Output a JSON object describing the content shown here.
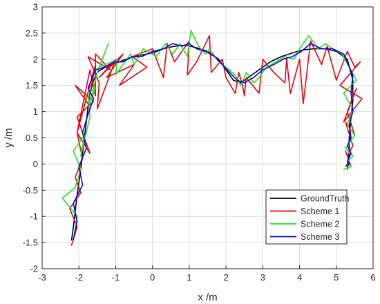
{
  "chart_data": {
    "type": "line",
    "title": "",
    "xlabel": "x /m",
    "ylabel": "y /m",
    "xlim": [
      -3,
      6
    ],
    "ylim": [
      -2,
      3
    ],
    "xticks": [
      -3,
      -2,
      -1,
      0,
      1,
      2,
      3,
      4,
      5,
      6
    ],
    "yticks": [
      -2,
      -1.5,
      -1,
      -0.5,
      0,
      0.5,
      1,
      1.5,
      2,
      2.5,
      3
    ],
    "grid": true,
    "legend_position": "bottom-right",
    "series": [
      {
        "name": "GroundTruth",
        "color": "#000000",
        "x": [
          -2.2,
          -2.15,
          -2.1,
          -2.05,
          -2.0,
          -1.95,
          -1.9,
          -1.85,
          -1.8,
          -1.75,
          -1.7,
          -1.6,
          -1.5,
          -1.45,
          -1.35,
          -1.2,
          -1.0,
          -0.8,
          -0.6,
          -0.3,
          0.0,
          0.3,
          0.6,
          0.9,
          1.2,
          1.5,
          1.8,
          2.0,
          2.2,
          2.4,
          2.6,
          2.9,
          3.2,
          3.5,
          3.8,
          4.1,
          4.4,
          4.7,
          5.0,
          5.3,
          5.45,
          5.45,
          5.4,
          5.35,
          5.35,
          5.3,
          5.3
        ],
        "y": [
          -1.45,
          -1.2,
          -0.9,
          -0.6,
          -0.35,
          -0.1,
          0.2,
          0.5,
          0.8,
          1.1,
          1.35,
          1.6,
          1.75,
          1.78,
          1.82,
          1.88,
          1.92,
          1.98,
          2.03,
          2.08,
          2.12,
          2.2,
          2.25,
          2.27,
          2.22,
          2.15,
          2.0,
          1.8,
          1.6,
          1.55,
          1.65,
          1.8,
          1.95,
          2.05,
          2.12,
          2.18,
          2.2,
          2.2,
          2.15,
          2.0,
          1.6,
          1.2,
          0.9,
          0.5,
          0.2,
          0.0,
          -0.1
        ]
      },
      {
        "name": "Scheme 1",
        "color": "#e8000b",
        "x": [
          -2.2,
          -2.05,
          -2.25,
          -1.95,
          -2.1,
          -1.9,
          -2.05,
          -1.7,
          -2.05,
          -1.6,
          -2.1,
          -1.75,
          -1.55,
          -2.05,
          -1.7,
          -1.55,
          -1.55,
          -1.15,
          -1.75,
          -1.45,
          -1.5,
          -1.0,
          -1.45,
          -0.8,
          -1.25,
          -0.5,
          -0.9,
          -0.15,
          -0.55,
          0.0,
          0.3,
          0.4,
          0.6,
          0.75,
          1.0,
          0.95,
          1.2,
          1.55,
          1.6,
          1.9,
          2.0,
          2.25,
          2.35,
          2.45,
          2.5,
          2.55,
          2.9,
          3.0,
          3.3,
          3.6,
          3.65,
          3.75,
          4.0,
          4.1,
          4.3,
          4.6,
          4.75,
          5.0,
          5.3,
          5.5,
          5.65,
          5.1,
          5.7,
          5.2,
          5.55,
          5.3,
          5.5,
          5.25,
          5.45,
          5.3,
          5.4,
          5.25,
          5.35,
          5.25
        ],
        "y": [
          -1.55,
          -1.2,
          -0.85,
          -0.55,
          -0.25,
          0.1,
          0.6,
          0.2,
          0.9,
          1.2,
          1.5,
          1.15,
          1.9,
          0.6,
          1.8,
          1.3,
          2.1,
          1.8,
          2.05,
          1.55,
          1.05,
          2.0,
          1.65,
          2.1,
          1.65,
          1.9,
          1.5,
          1.85,
          2.05,
          2.2,
          1.65,
          2.3,
          1.95,
          2.1,
          2.35,
          1.7,
          1.95,
          2.45,
          1.75,
          2.0,
          1.65,
          1.35,
          1.75,
          1.5,
          1.3,
          1.65,
          1.35,
          2.0,
          1.75,
          1.55,
          2.0,
          1.35,
          2.0,
          1.15,
          2.35,
          1.9,
          2.25,
          1.6,
          2.15,
          1.85,
          1.95,
          1.5,
          1.25,
          0.8,
          1.45,
          1.0,
          0.55,
          0.8,
          0.35,
          0.15,
          -0.05,
          0.25,
          0.05,
          -0.05
        ]
      },
      {
        "name": "Scheme 2",
        "color": "#1ce81c",
        "x": [
          -2.15,
          -2.05,
          -2.45,
          -2.1,
          -1.95,
          -2.15,
          -1.85,
          -1.95,
          -1.7,
          -1.75,
          -1.55,
          -1.7,
          -1.5,
          -1.2,
          -1.45,
          -0.95,
          -1.0,
          -0.6,
          -0.5,
          -0.25,
          0.1,
          0.35,
          0.55,
          0.75,
          0.95,
          1.05,
          1.25,
          1.45,
          1.55,
          1.8,
          2.0,
          2.25,
          2.4,
          2.55,
          2.75,
          2.9,
          3.1,
          3.35,
          3.6,
          3.85,
          4.0,
          4.25,
          4.5,
          4.7,
          4.9,
          5.15,
          5.35,
          5.55,
          5.2,
          5.45,
          5.3,
          5.5,
          5.25,
          5.45,
          5.3,
          5.4,
          5.2
        ],
        "y": [
          -1.45,
          -1.0,
          -0.65,
          -0.45,
          -0.1,
          0.25,
          0.55,
          0.15,
          0.9,
          1.35,
          1.45,
          1.15,
          1.75,
          2.3,
          1.85,
          2.0,
          1.7,
          2.1,
          1.9,
          2.2,
          2.05,
          2.3,
          2.1,
          2.3,
          2.05,
          2.55,
          2.25,
          2.1,
          2.2,
          1.95,
          1.85,
          1.7,
          1.5,
          1.75,
          1.55,
          1.65,
          1.85,
          1.95,
          2.05,
          2.0,
          2.2,
          2.45,
          2.2,
          2.3,
          2.2,
          2.1,
          1.85,
          1.6,
          1.35,
          1.05,
          0.75,
          0.55,
          0.3,
          0.15,
          0.05,
          -0.05,
          -0.1
        ]
      },
      {
        "name": "Scheme 3",
        "color": "#0000ff",
        "x": [
          -2.15,
          -2.05,
          -2.15,
          -1.9,
          -2.0,
          -1.8,
          -1.9,
          -1.75,
          -1.6,
          -1.75,
          -1.55,
          -1.3,
          -1.05,
          -0.8,
          -0.55,
          -0.3,
          0.0,
          0.3,
          0.55,
          0.8,
          1.0,
          1.2,
          1.45,
          1.7,
          1.9,
          2.1,
          2.3,
          2.5,
          2.75,
          3.0,
          3.3,
          3.55,
          3.8,
          4.05,
          4.3,
          4.6,
          4.9,
          5.2,
          5.45,
          5.4,
          5.45,
          5.35,
          5.4,
          5.3,
          5.4,
          5.3,
          5.35,
          5.3
        ],
        "y": [
          -1.45,
          -1.1,
          -0.75,
          -0.4,
          -0.05,
          0.3,
          0.6,
          0.95,
          1.25,
          1.45,
          1.8,
          1.85,
          1.95,
          1.95,
          2.05,
          2.05,
          2.15,
          2.2,
          2.3,
          2.25,
          2.3,
          2.2,
          2.15,
          2.05,
          1.9,
          1.75,
          1.6,
          1.55,
          1.65,
          1.8,
          1.9,
          2.0,
          2.05,
          2.15,
          2.3,
          2.2,
          2.2,
          2.1,
          1.7,
          1.35,
          1.0,
          0.75,
          0.5,
          0.35,
          0.2,
          0.05,
          0.0,
          -0.05
        ]
      }
    ]
  }
}
